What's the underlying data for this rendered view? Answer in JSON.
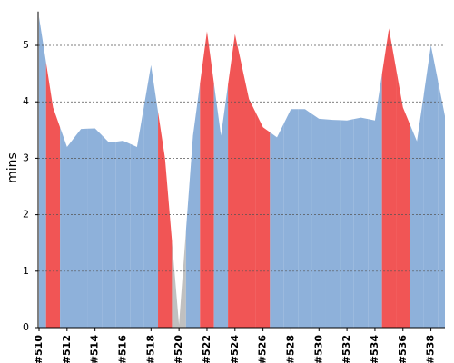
{
  "chart_data": {
    "type": "area",
    "y_label": "mins",
    "categories": [
      "#510",
      null,
      "#512",
      null,
      "#514",
      null,
      "#516",
      null,
      "#518",
      null,
      "#520",
      null,
      "#522",
      null,
      "#524",
      null,
      "#526",
      null,
      "#528",
      null,
      "#530",
      null,
      "#532",
      null,
      "#534",
      null,
      "#536",
      null,
      "#538",
      null
    ],
    "values": [
      5.5,
      3.9,
      3.2,
      3.52,
      3.53,
      3.28,
      3.31,
      3.2,
      4.65,
      3.0,
      0.05,
      3.4,
      5.25,
      3.4,
      5.2,
      4.05,
      3.55,
      3.37,
      3.87,
      3.87,
      3.7,
      3.68,
      3.67,
      3.72,
      3.67,
      5.3,
      3.9,
      3.3,
      5.0,
      3.75
    ],
    "colors": [
      "#8eb1da",
      "#f15555",
      "#8eb1da",
      "#8eb1da",
      "#8eb1da",
      "#8eb1da",
      "#8eb1da",
      "#8eb1da",
      "#8eb1da",
      "#f15555",
      "#c0c0c0",
      "#8eb1da",
      "#f15555",
      "#8eb1da",
      "#f15555",
      "#f15555",
      "#f15555",
      "#8eb1da",
      "#8eb1da",
      "#8eb1da",
      "#8eb1da",
      "#8eb1da",
      "#8eb1da",
      "#8eb1da",
      "#8eb1da",
      "#f15555",
      "#f15555",
      "#8eb1da",
      "#8eb1da",
      "#8eb1da"
    ],
    "ylim": [
      0,
      5.6
    ],
    "yticks": [
      0,
      1,
      2,
      3,
      4,
      5
    ],
    "grid": true
  }
}
